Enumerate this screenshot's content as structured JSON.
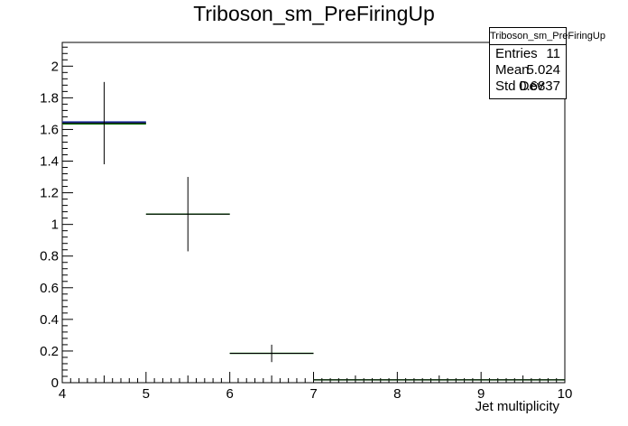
{
  "chart_data": {
    "type": "bar",
    "title": "Triboson_sm_PreFiringUp",
    "xlabel": "Jet multiplicity",
    "ylabel": "",
    "xlim": [
      4,
      10
    ],
    "ylim": [
      0,
      2.15
    ],
    "x_ticks": [
      "4",
      "5",
      "6",
      "7",
      "8",
      "9",
      "10"
    ],
    "y_ticks": [
      "0",
      "0.2",
      "0.4",
      "0.6",
      "0.8",
      "1",
      "1.2",
      "1.4",
      "1.6",
      "1.8",
      "2"
    ],
    "bins": [
      {
        "xlow": 4,
        "xhigh": 5,
        "value": 1.64,
        "error": 0.26
      },
      {
        "xlow": 5,
        "xhigh": 6,
        "value": 1.065,
        "error": 0.235
      },
      {
        "xlow": 6,
        "xhigh": 7,
        "value": 0.185,
        "error": 0.055
      },
      {
        "xlow": 7,
        "xhigh": 10,
        "value": 0.018,
        "error": 0.0
      }
    ],
    "stats": {
      "name": "Triboson_sm_PreFiringUp",
      "rows": [
        {
          "label": "Entries",
          "value": "11"
        },
        {
          "label": "Mean",
          "value": "5.024"
        },
        {
          "label": "Std Dev",
          "value": "0.6837"
        }
      ]
    },
    "colors": {
      "line_blue": "#1f2f9a",
      "line_green": "#1a7a1a",
      "error_bar": "#000000"
    }
  }
}
